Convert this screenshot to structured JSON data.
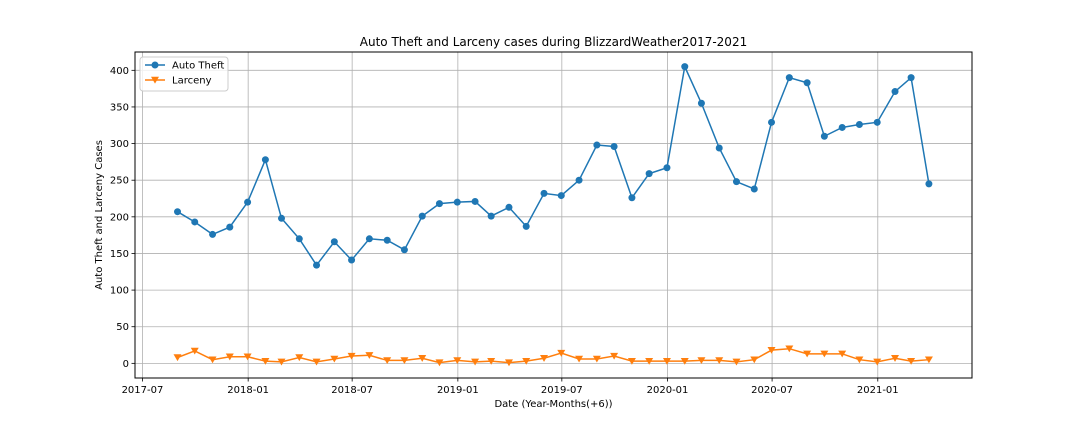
{
  "chart_data": {
    "type": "line",
    "title": "Auto Theft and Larceny cases during BlizzardWeather2017-2021",
    "xlabel": "Date (Year-Months(+6))",
    "ylabel": "Auto Theft and Larceny Cases",
    "ylim": [
      -20,
      425
    ],
    "xlim": [
      "2017-06-18",
      "2021-06-14"
    ],
    "yticks": [
      0,
      50,
      100,
      150,
      200,
      250,
      300,
      350,
      400
    ],
    "xticks": [
      {
        "date": "2017-07-01",
        "label": "2017-07"
      },
      {
        "date": "2018-01-01",
        "label": "2018-01"
      },
      {
        "date": "2018-07-01",
        "label": "2018-07"
      },
      {
        "date": "2019-01-01",
        "label": "2019-01"
      },
      {
        "date": "2019-07-01",
        "label": "2019-07"
      },
      {
        "date": "2020-01-01",
        "label": "2020-01"
      },
      {
        "date": "2020-07-01",
        "label": "2020-07"
      },
      {
        "date": "2021-01-01",
        "label": "2021-01"
      }
    ],
    "grid": true,
    "legend_position": "top-left",
    "x": [
      "2017-08-31",
      "2017-09-30",
      "2017-10-31",
      "2017-11-30",
      "2017-12-31",
      "2018-01-31",
      "2018-02-28",
      "2018-03-31",
      "2018-04-30",
      "2018-05-31",
      "2018-06-30",
      "2018-07-31",
      "2018-08-31",
      "2018-09-30",
      "2018-10-31",
      "2018-11-30",
      "2018-12-31",
      "2019-01-31",
      "2019-02-28",
      "2019-03-31",
      "2019-04-30",
      "2019-05-31",
      "2019-06-30",
      "2019-07-31",
      "2019-08-31",
      "2019-09-30",
      "2019-10-31",
      "2019-11-30",
      "2019-12-31",
      "2020-01-31",
      "2020-02-29",
      "2020-03-31",
      "2020-04-30",
      "2020-05-31",
      "2020-06-30",
      "2020-07-31",
      "2020-08-31",
      "2020-09-30",
      "2020-10-31",
      "2020-11-30",
      "2020-12-31",
      "2021-01-31",
      "2021-02-28",
      "2021-03-31"
    ],
    "series": [
      {
        "name": "Auto Theft",
        "color": "#1f77b4",
        "marker": "circle",
        "values": [
          207,
          193,
          176,
          186,
          220,
          278,
          198,
          170,
          134,
          166,
          141,
          170,
          168,
          155,
          201,
          218,
          220,
          221,
          201,
          213,
          187,
          232,
          229,
          250,
          298,
          296,
          226,
          259,
          267,
          405,
          355,
          294,
          248,
          238,
          329,
          390,
          383,
          310,
          322,
          326,
          329,
          371,
          390,
          245
        ]
      },
      {
        "name": "Larceny",
        "color": "#ff7f0e",
        "marker": "triangle-down",
        "values": [
          8,
          17,
          5,
          9,
          9,
          3,
          2,
          8,
          2,
          6,
          10,
          11,
          4,
          4,
          7,
          1,
          4,
          2,
          3,
          1,
          3,
          7,
          14,
          6,
          6,
          10,
          3,
          3,
          3,
          3,
          4,
          4,
          2,
          5,
          18,
          20,
          13,
          13,
          13,
          5,
          2,
          7,
          3,
          5
        ]
      }
    ]
  }
}
